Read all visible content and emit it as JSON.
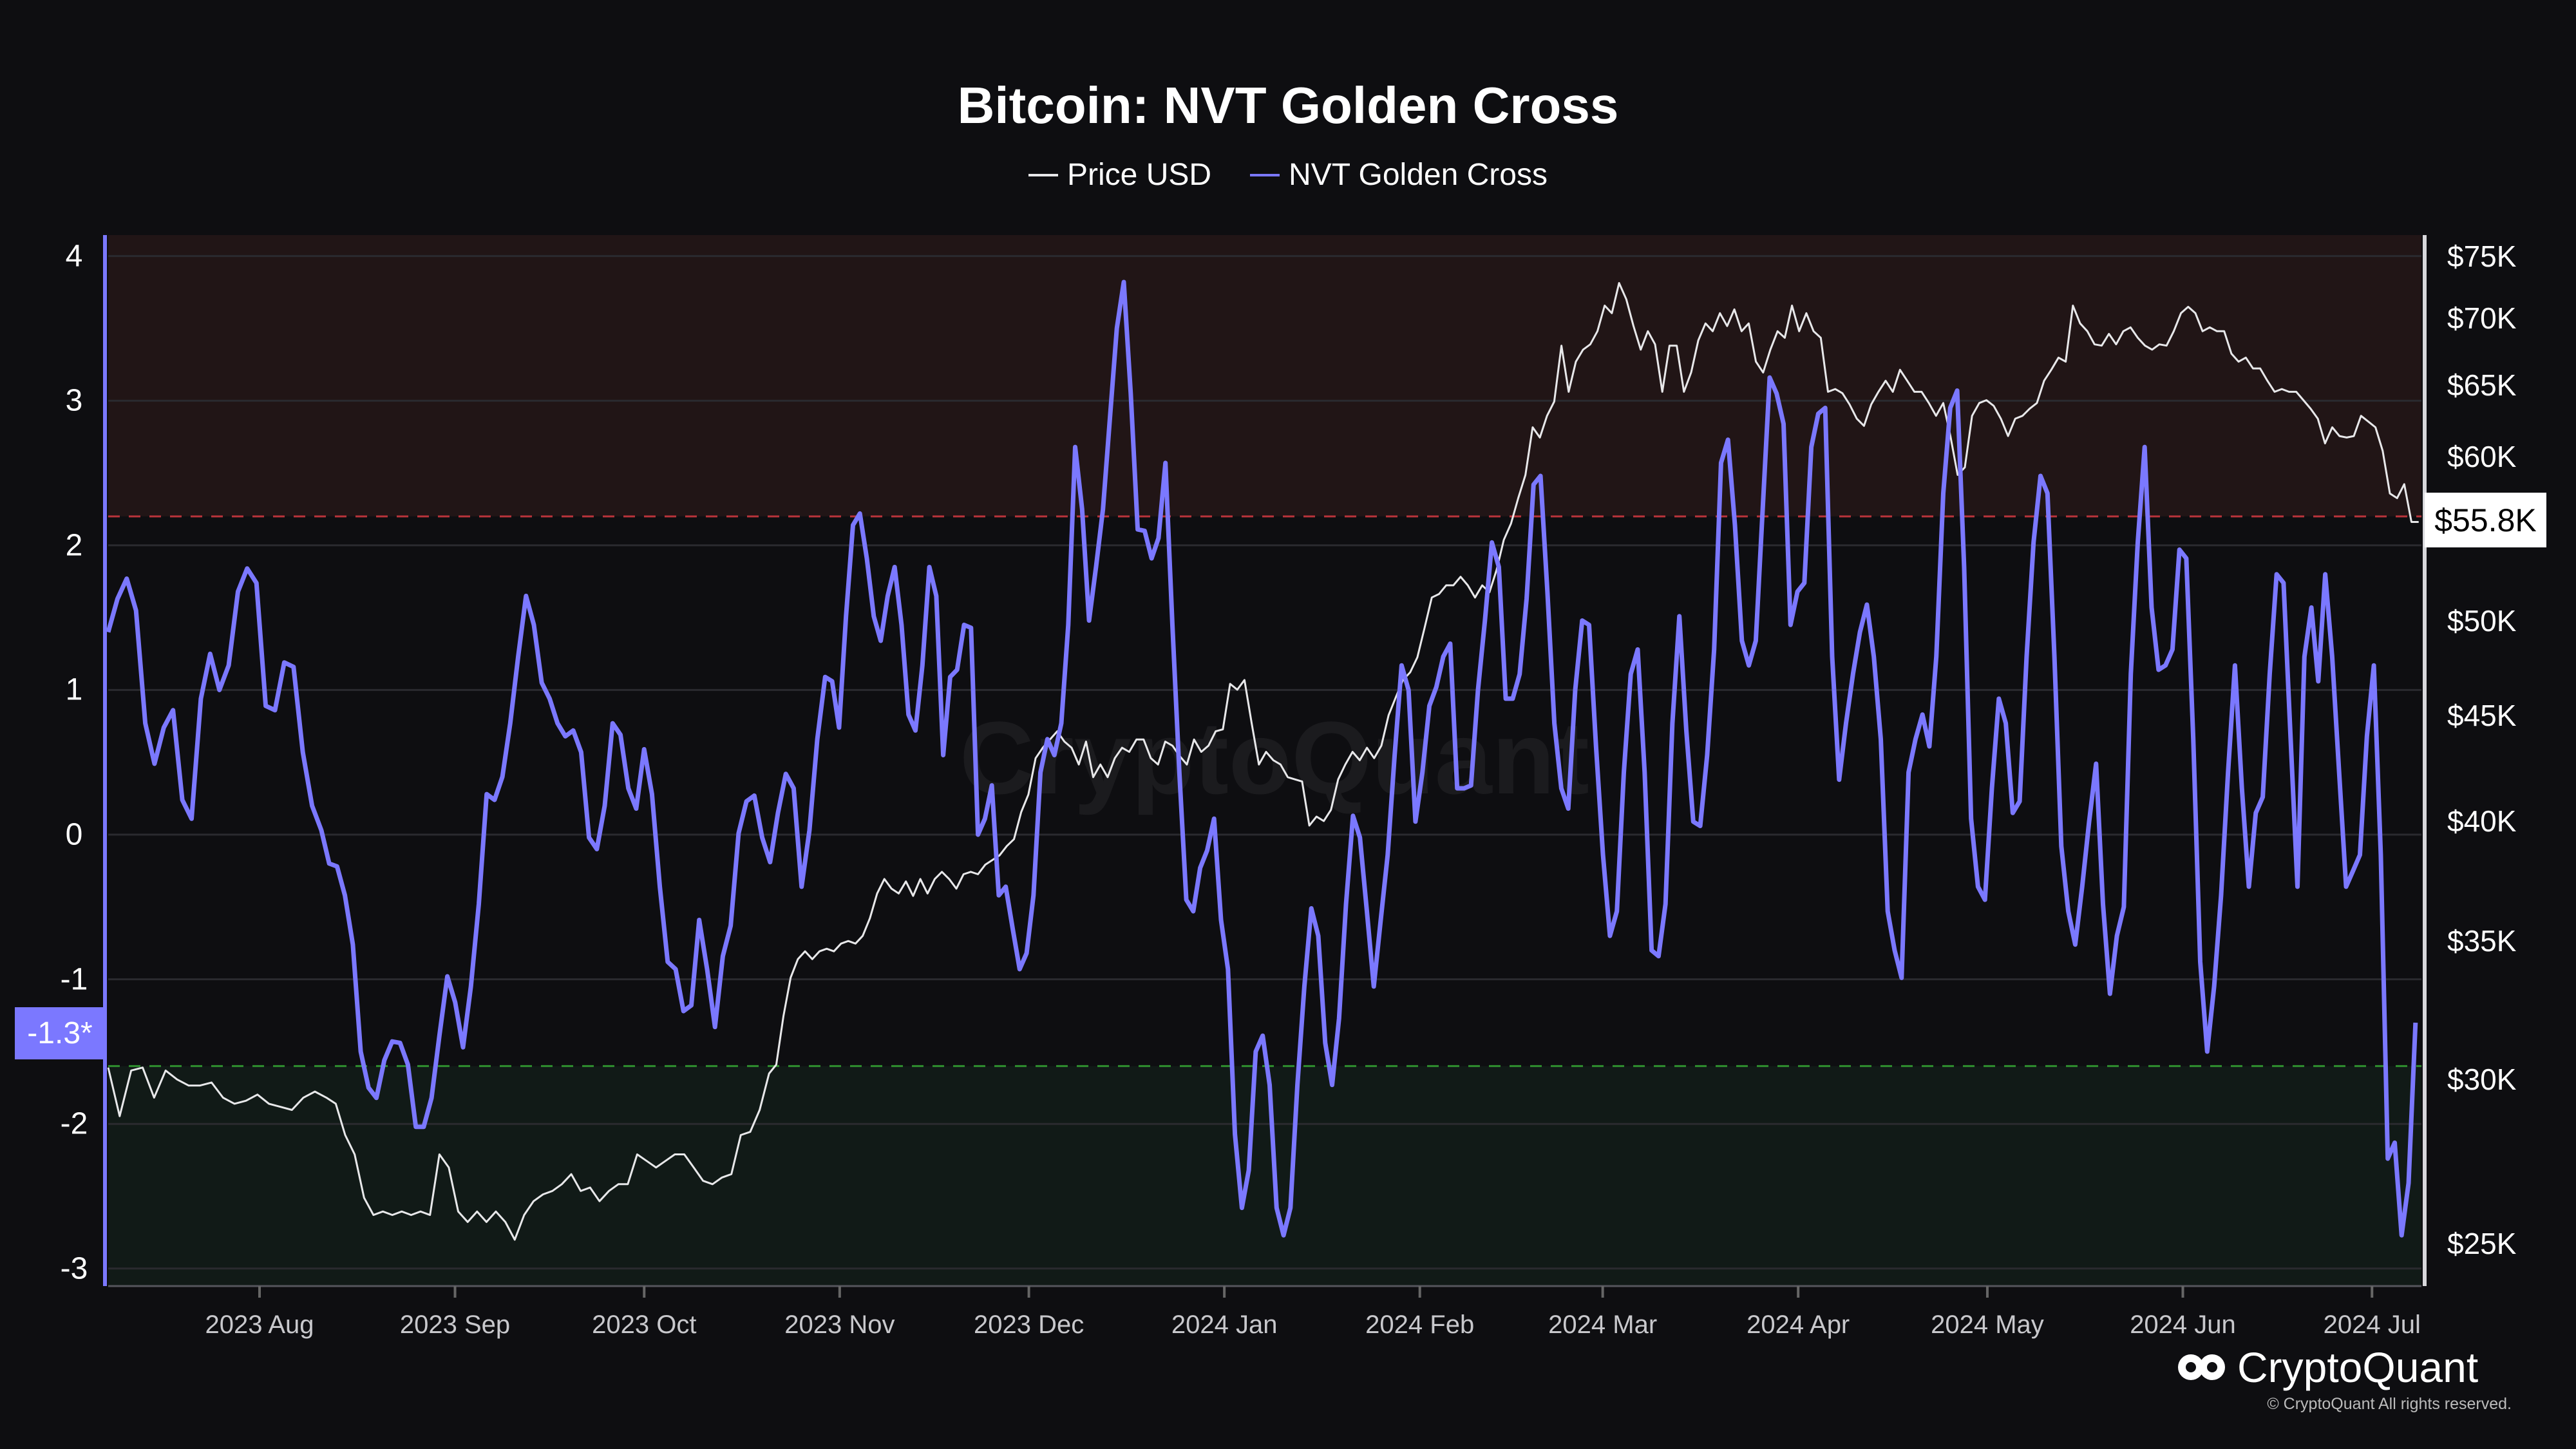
{
  "title": "Bitcoin: NVT Golden Cross",
  "legend": [
    {
      "label": "Price USD",
      "color": "#e8e8ea"
    },
    {
      "label": "NVT Golden Cross",
      "color": "#7b78ff"
    }
  ],
  "watermark": "CryptoQuant",
  "brand": {
    "name": "CryptoQuant",
    "copyright": "© CryptoQuant All rights reserved."
  },
  "badges": {
    "nvt_current": "-1.3*",
    "price_current": "$55.8K"
  },
  "chart_data": {
    "type": "line",
    "title": "Bitcoin: NVT Golden Cross",
    "start_date": "2023-07-08",
    "end_day": 366,
    "x_ticks": [
      {
        "label": "2023 Aug",
        "day": 24
      },
      {
        "label": "2023 Sep",
        "day": 55
      },
      {
        "label": "2023 Oct",
        "day": 85
      },
      {
        "label": "2023 Nov",
        "day": 116
      },
      {
        "label": "2023 Dec",
        "day": 146
      },
      {
        "label": "2024 Jan",
        "day": 177
      },
      {
        "label": "2024 Feb",
        "day": 208
      },
      {
        "label": "2024 Mar",
        "day": 237
      },
      {
        "label": "2024 Apr",
        "day": 268
      },
      {
        "label": "2024 May",
        "day": 298
      },
      {
        "label": "2024 Jun",
        "day": 329
      },
      {
        "label": "2024 Jul",
        "day": 359
      }
    ],
    "left_axis": {
      "ylim": [
        -3.3,
        4.15
      ],
      "ticks": [
        "4",
        "3",
        "2",
        "1",
        "0",
        "-1",
        "-2",
        "-3"
      ],
      "tick_values": [
        4,
        3,
        2,
        1,
        0,
        -1,
        -2,
        -3
      ]
    },
    "right_axis": {
      "scale": "log",
      "ticks": [
        "$75K",
        "$70K",
        "$65K",
        "$60K",
        "$50K",
        "$45K",
        "$40K",
        "$35K",
        "$30K",
        "$25K"
      ],
      "tick_values": [
        75,
        70,
        65,
        60,
        50,
        45,
        40,
        35,
        30,
        25
      ],
      "unit": "USD thousands"
    },
    "thresholds": {
      "upper": 2.2,
      "lower": -1.6,
      "upper_color": "#b8333a",
      "lower_color": "#2f8f2f"
    },
    "series": [
      {
        "name": "NVT Golden Cross",
        "axis": "left",
        "color": "#7b78ff",
        "segments": [
          {
            "start_day": 0,
            "end_day": 33.8,
            "values": [
              1.4,
              1.63,
              1.77,
              1.55,
              0.77,
              0.49,
              0.74,
              0.86,
              0.24,
              0.11,
              0.94,
              1.25,
              1.0,
              1.17,
              1.68,
              1.84,
              1.74,
              0.89,
              0.86,
              1.19,
              1.16,
              0.57,
              0.2,
              0.03
            ]
          },
          {
            "start_day": 33.8,
            "end_day": 113.7,
            "values": [
              0.03,
              -0.2,
              -0.22,
              -0.42,
              -0.76,
              -1.5,
              -1.75,
              -1.82,
              -1.56,
              -1.43,
              -1.44,
              -1.59,
              -2.02,
              -2.02,
              -1.82,
              -1.39,
              -0.98,
              -1.16,
              -1.47,
              -1.05,
              -0.48,
              0.28,
              0.24,
              0.4,
              0.77,
              1.23,
              1.65,
              1.45,
              1.05,
              0.94,
              0.77,
              0.68,
              0.72,
              0.57,
              -0.02,
              -0.1,
              0.2,
              0.77,
              0.69,
              0.32,
              0.18,
              0.59,
              0.28,
              -0.36,
              -0.88,
              -0.93,
              -1.22,
              -1.18,
              -0.59,
              -0.93,
              -1.33,
              -0.84,
              -0.63,
              0.01,
              0.23,
              0.27,
              -0.02,
              -0.19,
              0.15,
              0.42,
              0.32,
              -0.36,
              0.03,
              0.66,
              1.09
            ]
          },
          {
            "start_day": 113.7,
            "end_day": 365.9,
            "values": [
              1.09,
              1.06,
              0.74,
              1.51,
              2.14,
              2.22,
              1.91,
              1.51,
              1.34,
              1.65,
              1.85,
              1.45,
              0.83,
              0.72,
              1.17,
              1.85,
              1.65,
              0.55,
              1.09,
              1.14,
              1.45,
              1.43,
              0,
              0.11,
              0.34,
              -0.42,
              -0.36,
              -0.65,
              -0.93,
              -0.82,
              -0.42,
              0.43,
              0.66,
              0.55,
              0.77,
              1.45,
              2.68,
              2.25,
              1.48,
              1.85,
              2.25,
              2.88,
              3.5,
              3.82,
              3.05,
              2.11,
              2.1,
              1.91,
              2.05,
              2.57,
              1.45,
              0.43,
              -0.45,
              -0.53,
              -0.23,
              -0.11,
              0.11,
              -0.59,
              -0.93,
              -2.07,
              -2.58,
              -2.32,
              -1.5,
              -1.39,
              -1.73,
              -2.58,
              -2.77,
              -2.58,
              -1.73,
              -1.05,
              -0.51,
              -0.7,
              -1.44,
              -1.73,
              -1.27,
              -0.48,
              0.13,
              -0.02,
              -0.53,
              -1.05,
              -0.59,
              -0.14,
              0.55,
              1.17,
              1.0,
              0.09,
              0.43,
              0.89,
              1.02,
              1.23,
              1.32,
              0.32,
              0.32,
              0.34,
              1.0,
              1.48,
              2.02,
              1.85,
              0.94,
              0.94,
              1.11,
              1.63,
              2.42,
              2.48,
              1.68,
              0.77,
              0.32,
              0.18,
              1.0,
              1.48,
              1.45,
              0.61,
              -0.14,
              -0.7,
              -0.53,
              0.43,
              1.11,
              1.28,
              0.43,
              -0.8,
              -0.84,
              -0.48,
              0.77,
              1.51,
              0.72,
              0.09,
              0.06,
              0.55,
              1.28,
              2.57,
              2.73,
              2.14,
              1.34,
              1.17,
              1.34,
              2.25,
              3.16,
              3.05,
              2.84,
              1.45,
              1.68,
              1.74,
              2.68,
              2.91,
              2.95,
              1.23,
              0.38,
              0.77,
              1.11,
              1.4,
              1.59,
              1.23,
              0.66,
              -0.53,
              -0.8,
              -0.99,
              0.43,
              0.66,
              0.83,
              0.61,
              1.23,
              2.36,
              2.95,
              3.07,
              1.85,
              0.11,
              -0.36,
              -0.45,
              0.32,
              0.94,
              0.77,
              0.15,
              0.23,
              1.23,
              2.02,
              2.48,
              2.36,
              1.23,
              -0.08,
              -0.53,
              -0.76,
              -0.36,
              0.09,
              0.49,
              -0.48,
              -1.1,
              -0.7,
              -0.5,
              1.11,
              2.02,
              2.68,
              1.57,
              1.14,
              1.17,
              1.28,
              1.97,
              1.91,
              0.66,
              -0.88,
              -1.5,
              -1.05,
              -0.42,
              0.43,
              1.17,
              0.32,
              -0.36,
              0.15,
              0.26,
              1.11,
              1.8,
              1.74,
              0.68,
              -0.36,
              1.23,
              1.57,
              1.06,
              1.8,
              1.23,
              0.43,
              -0.36,
              -0.25,
              -0.14,
              0.68,
              1.17,
              -0.14,
              -2.24,
              -2.13,
              -2.77,
              -2.41,
              -1.3
            ]
          }
        ]
      },
      {
        "name": "Price USD",
        "axis": "right",
        "color": "#e8e8ea",
        "unit": "USD thousands",
        "segments": [
          {
            "start_day": 0,
            "end_day": 34.6,
            "values": [
              30.4,
              28.8,
              30.3,
              30.4,
              29.4,
              30.3,
              30.0,
              29.8,
              29.8,
              29.9,
              29.4,
              29.2,
              29.3,
              29.5,
              29.2,
              29.1,
              29.0,
              29.4,
              29.6,
              29.4
            ]
          },
          {
            "start_day": 34.6,
            "end_day": 104.8,
            "values": [
              29.4,
              29.2,
              28.2,
              27.6,
              26.3,
              25.8,
              25.9,
              25.8,
              25.9,
              25.8,
              25.9,
              25.8,
              27.6,
              27.2,
              25.9,
              25.6,
              25.9,
              25.6,
              25.9,
              25.6,
              25.1,
              25.8,
              26.2,
              26.4,
              26.5,
              26.7,
              27.0,
              26.5,
              26.6,
              26.2,
              26.5,
              26.7,
              26.7,
              27.6,
              27.4,
              27.2,
              27.4,
              27.6,
              27.6,
              27.2,
              26.8,
              26.7,
              26.9,
              27.0,
              28.2,
              28.3,
              29.0,
              30.2
            ]
          },
          {
            "start_day": 104.8,
            "end_day": 366.4,
            "values": [
              30.2,
              30.5,
              32.2,
              33.6,
              34.3,
              34.6,
              34.3,
              34.6,
              34.7,
              34.6,
              34.9,
              35.0,
              34.9,
              35.2,
              35.9,
              36.9,
              37.5,
              37.1,
              36.9,
              37.4,
              36.8,
              37.5,
              36.9,
              37.5,
              37.8,
              37.5,
              37.1,
              37.7,
              37.8,
              37.7,
              38.1,
              38.3,
              38.5,
              38.9,
              39.2,
              40.4,
              41.2,
              42.9,
              43.4,
              43.8,
              44.2,
              43.7,
              43.4,
              42.6,
              43.7,
              42.0,
              42.6,
              42.0,
              42.9,
              43.4,
              43.2,
              43.8,
              43.8,
              42.9,
              42.6,
              43.7,
              43.5,
              43.0,
              42.6,
              43.8,
              43.2,
              43.5,
              44.2,
              44.3,
              46.6,
              46.3,
              46.8,
              44.6,
              42.6,
              43.2,
              42.8,
              42.6,
              42.0,
              41.9,
              41.8,
              39.8,
              40.2,
              40.0,
              40.5,
              41.9,
              42.6,
              43.2,
              42.8,
              43.4,
              42.9,
              43.5,
              45.0,
              45.9,
              46.8,
              47.2,
              48.0,
              49.6,
              51.3,
              51.5,
              52.0,
              52.0,
              52.5,
              52.0,
              51.3,
              52.0,
              51.6,
              52.9,
              54.7,
              55.7,
              57.3,
              58.8,
              62.0,
              61.3,
              62.8,
              63.8,
              67.9,
              64.5,
              66.7,
              67.6,
              68.0,
              69.0,
              71.0,
              70.4,
              72.8,
              71.5,
              69.4,
              67.6,
              69.0,
              68.0,
              64.5,
              67.9,
              67.9,
              64.5,
              65.9,
              68.3,
              69.6,
              69.0,
              70.4,
              69.4,
              70.7,
              69.0,
              69.6,
              66.7,
              65.9,
              67.6,
              69.0,
              68.5,
              71.0,
              69.0,
              70.4,
              69.0,
              68.5,
              64.5,
              64.7,
              64.4,
              63.6,
              62.6,
              62.1,
              63.6,
              64.5,
              65.3,
              64.5,
              66.1,
              65.3,
              64.5,
              64.5,
              63.7,
              62.8,
              63.7,
              61.4,
              58.8,
              59.3,
              62.8,
              63.7,
              63.9,
              63.5,
              62.6,
              61.4,
              62.6,
              62.8,
              63.3,
              63.7,
              65.3,
              66.1,
              67.0,
              66.7,
              71.0,
              69.6,
              69.0,
              68.0,
              67.9,
              68.8,
              68.0,
              69.0,
              69.3,
              68.5,
              67.9,
              67.6,
              68.0,
              67.9,
              69.0,
              70.4,
              70.9,
              70.4,
              69.0,
              69.3,
              69.0,
              69.0,
              67.3,
              66.7,
              67.0,
              66.2,
              66.2,
              65.3,
              64.5,
              64.7,
              64.5,
              64.5,
              63.9,
              63.3,
              62.6,
              60.9,
              62.0,
              61.4,
              61.3,
              61.4,
              62.8,
              62.4,
              62.0,
              60.4,
              57.6,
              57.3,
              58.2,
              55.8,
              55.8
            ]
          }
        ]
      }
    ]
  }
}
